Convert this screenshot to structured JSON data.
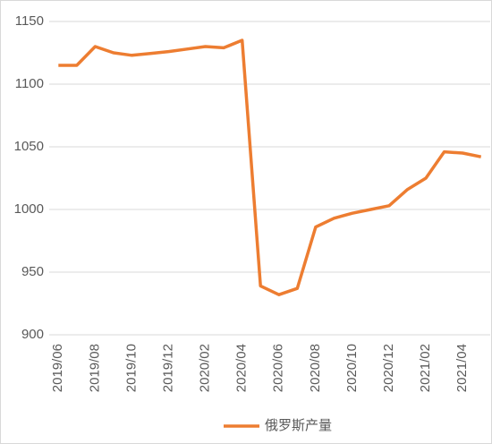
{
  "chart_data": {
    "type": "line",
    "categories": [
      "2019/06",
      null,
      "2019/08",
      null,
      "2019/10",
      null,
      "2019/12",
      null,
      "2020/02",
      null,
      "2020/04",
      null,
      "2020/06",
      null,
      "2020/08",
      null,
      "2020/10",
      null,
      "2020/12",
      null,
      "2021/02",
      null,
      "2021/04",
      null
    ],
    "series": [
      {
        "name": "俄罗斯产量",
        "color": "#ed7d31",
        "values": [
          1115,
          1115,
          1130,
          1125,
          1123,
          1124.5,
          1126,
          1128,
          1130,
          1129,
          1135,
          939,
          932,
          937,
          986,
          993,
          997,
          1000,
          1003,
          1016,
          1025,
          1046,
          1045,
          1042
        ]
      }
    ],
    "ylim": [
      900,
      1150
    ],
    "yticks": [
      900,
      950,
      1000,
      1050,
      1100,
      1150
    ],
    "grid": true,
    "legend": "bottom"
  }
}
